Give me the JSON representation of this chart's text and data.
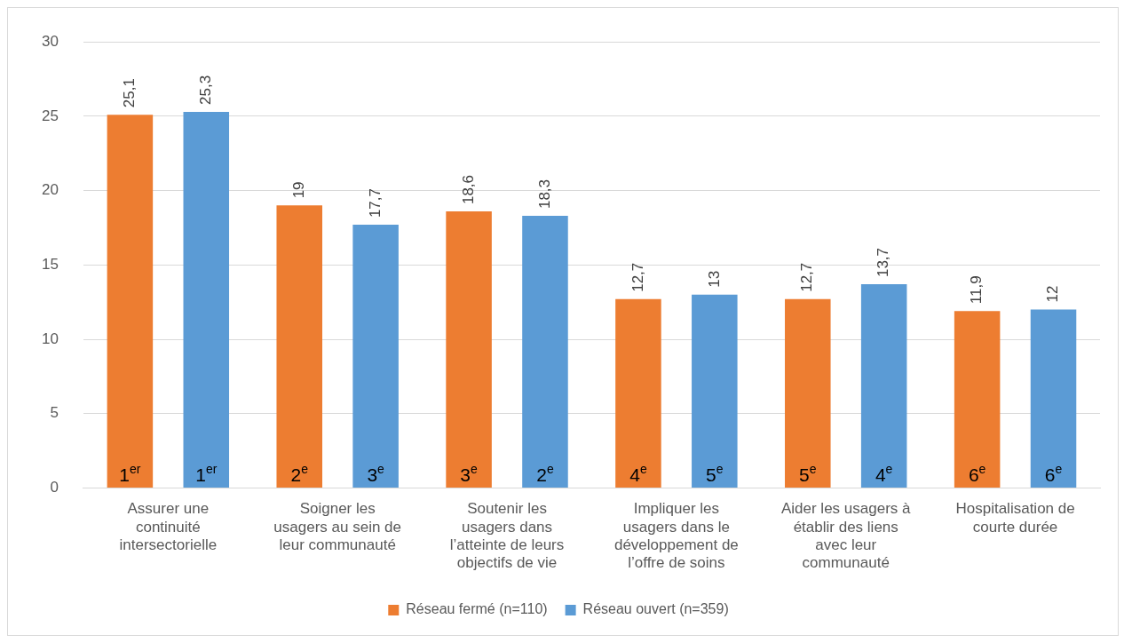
{
  "chart_data": {
    "type": "bar",
    "categories": [
      "Assurer une continuité intersectorielle",
      "Soigner les usagers au sein de leur communauté",
      "Soutenir les usagers dans l’atteinte de leurs objectifs de vie",
      "Impliquer les usagers dans le développement de l’offre de soins",
      "Aider les usagers à établir des liens avec leur communauté",
      "Hospitalisation de courte durée"
    ],
    "series": [
      {
        "name": "Réseau fermé (n=110)",
        "color": "#ed7d31",
        "values": [
          25.1,
          19,
          18.6,
          12.7,
          12.7,
          11.9
        ],
        "value_labels": [
          "25,1",
          "19",
          "18,6",
          "12,7",
          "12,7",
          "11,9"
        ]
      },
      {
        "name": "Réseau ouvert (n=359)",
        "color": "#5b9bd5",
        "values": [
          25.3,
          17.7,
          18.3,
          13,
          13.7,
          12
        ],
        "value_labels": [
          "25,3",
          "17,7",
          "18,3",
          "13",
          "13,7",
          "12"
        ]
      }
    ],
    "ylim": [
      0,
      30
    ],
    "yticks": [
      0,
      5,
      10,
      15,
      20,
      25,
      30
    ],
    "grid": "y",
    "legend": "bottom",
    "annotations": [
      "1$^{er}$",
      "1$^{er}$",
      "2$^{e}$",
      "3$^{e}$",
      "3$^{e}$",
      "2$^{e}$",
      "4$^{e}$",
      "5$^{e}$",
      "5$^{e}$",
      "4$^{e}$",
      "6$^{e}$",
      "6$^{e}$"
    ]
  }
}
